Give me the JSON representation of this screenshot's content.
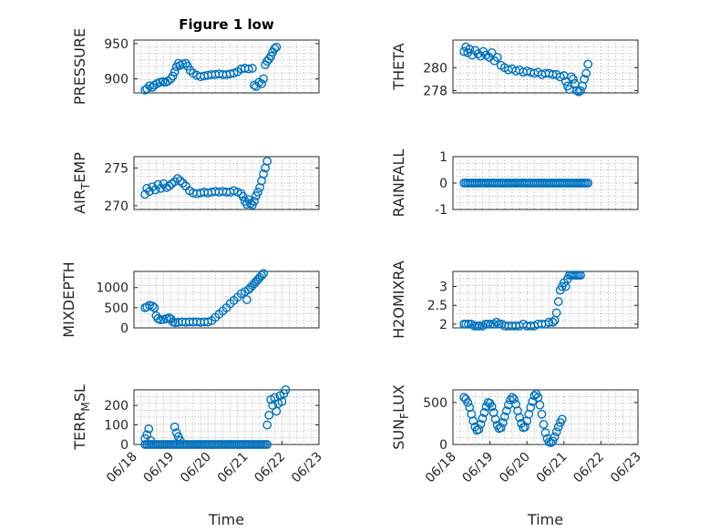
{
  "figure": {
    "title": "Figure 1 low"
  },
  "colors": {
    "marker": "#0072BD",
    "axis": "#262626",
    "grid": "#b0b0b0"
  },
  "chart_data": [
    {
      "id": "pressure",
      "type": "scatter",
      "title": "Figure 1 low",
      "ylabel": "PRESSURE",
      "xlabel": "",
      "xlim": [
        0,
        5
      ],
      "ylim": [
        880,
        955
      ],
      "yticks": [
        900,
        950
      ],
      "yticklabels": [
        "900",
        "950"
      ],
      "xticks": [],
      "xticklabels": [],
      "grid": true,
      "marker": "circle",
      "points": [
        [
          0.3,
          884
        ],
        [
          0.35,
          886
        ],
        [
          0.42,
          890
        ],
        [
          0.5,
          888
        ],
        [
          0.55,
          891
        ],
        [
          0.62,
          893
        ],
        [
          0.7,
          895
        ],
        [
          0.78,
          896
        ],
        [
          0.85,
          895
        ],
        [
          0.92,
          897
        ],
        [
          1.0,
          900
        ],
        [
          1.05,
          904
        ],
        [
          1.1,
          910
        ],
        [
          1.15,
          917
        ],
        [
          1.2,
          922
        ],
        [
          1.25,
          919
        ],
        [
          1.32,
          921
        ],
        [
          1.4,
          922
        ],
        [
          1.45,
          918
        ],
        [
          1.52,
          912
        ],
        [
          1.6,
          908
        ],
        [
          1.7,
          905
        ],
        [
          1.8,
          903
        ],
        [
          1.9,
          904
        ],
        [
          2.0,
          905
        ],
        [
          2.1,
          906
        ],
        [
          2.2,
          906
        ],
        [
          2.3,
          907
        ],
        [
          2.4,
          906
        ],
        [
          2.5,
          906
        ],
        [
          2.6,
          907
        ],
        [
          2.7,
          908
        ],
        [
          2.8,
          910
        ],
        [
          2.9,
          914
        ],
        [
          3.0,
          915
        ],
        [
          3.1,
          914
        ],
        [
          3.2,
          915
        ],
        [
          3.25,
          891
        ],
        [
          3.3,
          889
        ],
        [
          3.38,
          895
        ],
        [
          3.45,
          893
        ],
        [
          3.5,
          900
        ],
        [
          3.55,
          920
        ],
        [
          3.6,
          925
        ],
        [
          3.65,
          928
        ],
        [
          3.7,
          932
        ],
        [
          3.75,
          938
        ],
        [
          3.8,
          943
        ],
        [
          3.85,
          945
        ]
      ]
    },
    {
      "id": "theta",
      "type": "scatter",
      "ylabel": "THETA",
      "xlabel": "",
      "xlim": [
        0,
        5
      ],
      "ylim": [
        277.8,
        282.4
      ],
      "yticks": [
        278,
        280
      ],
      "yticklabels": [
        "278",
        "280"
      ],
      "xticks": [],
      "xticklabels": [],
      "grid": true,
      "marker": "circle",
      "points": [
        [
          0.3,
          281.4
        ],
        [
          0.35,
          281.8
        ],
        [
          0.4,
          281.3
        ],
        [
          0.45,
          281.6
        ],
        [
          0.52,
          281.1
        ],
        [
          0.6,
          281.5
        ],
        [
          0.68,
          281.2
        ],
        [
          0.75,
          281.0
        ],
        [
          0.82,
          281.4
        ],
        [
          0.9,
          281.1
        ],
        [
          0.98,
          280.9
        ],
        [
          1.05,
          281.3
        ],
        [
          1.12,
          280.6
        ],
        [
          1.2,
          280.9
        ],
        [
          1.3,
          280.2
        ],
        [
          1.4,
          280.0
        ],
        [
          1.5,
          279.8
        ],
        [
          1.6,
          279.9
        ],
        [
          1.7,
          279.7
        ],
        [
          1.8,
          279.8
        ],
        [
          1.9,
          279.6
        ],
        [
          2.0,
          279.7
        ],
        [
          2.1,
          279.6
        ],
        [
          2.2,
          279.5
        ],
        [
          2.3,
          279.6
        ],
        [
          2.4,
          279.4
        ],
        [
          2.5,
          279.5
        ],
        [
          2.6,
          279.5
        ],
        [
          2.7,
          279.4
        ],
        [
          2.8,
          279.4
        ],
        [
          2.9,
          279.2
        ],
        [
          3.0,
          279.3
        ],
        [
          3.05,
          278.8
        ],
        [
          3.1,
          278.4
        ],
        [
          3.15,
          278.1
        ],
        [
          3.2,
          279.2
        ],
        [
          3.25,
          279.0
        ],
        [
          3.3,
          278.6
        ],
        [
          3.35,
          278.0
        ],
        [
          3.4,
          277.9
        ],
        [
          3.45,
          278.0
        ],
        [
          3.5,
          278.4
        ],
        [
          3.55,
          279.0
        ],
        [
          3.6,
          279.5
        ],
        [
          3.65,
          280.3
        ]
      ]
    },
    {
      "id": "air_temp",
      "type": "scatter",
      "ylabel": "AIR",
      "ylabel_sub": "T",
      "ylabel_rest": "EMP",
      "xlabel": "",
      "xlim": [
        0,
        5
      ],
      "ylim": [
        269.5,
        276.5
      ],
      "yticks": [
        270,
        275
      ],
      "yticklabels": [
        "270",
        "275"
      ],
      "xticks": [],
      "xticklabels": [],
      "grid": true,
      "marker": "circle",
      "points": [
        [
          0.3,
          271.5
        ],
        [
          0.35,
          272.3
        ],
        [
          0.42,
          271.9
        ],
        [
          0.5,
          272.5
        ],
        [
          0.58,
          272.1
        ],
        [
          0.65,
          272.8
        ],
        [
          0.72,
          272.3
        ],
        [
          0.8,
          272.9
        ],
        [
          0.88,
          272.4
        ],
        [
          0.95,
          272.6
        ],
        [
          1.02,
          272.9
        ],
        [
          1.1,
          273.2
        ],
        [
          1.18,
          273.6
        ],
        [
          1.25,
          273.3
        ],
        [
          1.32,
          273.0
        ],
        [
          1.4,
          272.6
        ],
        [
          1.5,
          272.0
        ],
        [
          1.6,
          271.7
        ],
        [
          1.7,
          271.6
        ],
        [
          1.8,
          271.7
        ],
        [
          1.9,
          271.8
        ],
        [
          2.0,
          271.7
        ],
        [
          2.1,
          271.8
        ],
        [
          2.2,
          271.9
        ],
        [
          2.3,
          271.8
        ],
        [
          2.4,
          271.9
        ],
        [
          2.5,
          271.8
        ],
        [
          2.6,
          271.8
        ],
        [
          2.7,
          272.0
        ],
        [
          2.8,
          271.8
        ],
        [
          2.9,
          271.6
        ],
        [
          2.95,
          271.2
        ],
        [
          3.0,
          270.6
        ],
        [
          3.05,
          270.2
        ],
        [
          3.1,
          270.8
        ],
        [
          3.15,
          270.3
        ],
        [
          3.2,
          270.1
        ],
        [
          3.25,
          270.6
        ],
        [
          3.3,
          271.3
        ],
        [
          3.35,
          271.8
        ],
        [
          3.4,
          272.4
        ],
        [
          3.45,
          273.3
        ],
        [
          3.5,
          274.2
        ],
        [
          3.55,
          275.0
        ],
        [
          3.6,
          275.9
        ]
      ]
    },
    {
      "id": "rainfall",
      "type": "scatter",
      "ylabel": "RAINFALL",
      "xlabel": "",
      "xlim": [
        0,
        5
      ],
      "ylim": [
        -1,
        1
      ],
      "yticks": [
        -1,
        0,
        1
      ],
      "yticklabels": [
        "-1",
        "0",
        "1"
      ],
      "xticks": [],
      "xticklabels": [],
      "grid": true,
      "marker": "circle",
      "constant": {
        "from": 0.3,
        "to": 3.65,
        "step": 0.05,
        "value": 0
      }
    },
    {
      "id": "mixdepth",
      "type": "scatter",
      "ylabel": "MIXDEPTH",
      "xlabel": "",
      "xlim": [
        0,
        5
      ],
      "ylim": [
        0,
        1400
      ],
      "yticks": [
        0,
        500,
        1000
      ],
      "yticklabels": [
        "0",
        "500",
        "1000"
      ],
      "xticks": [],
      "xticklabels": [],
      "grid": true,
      "marker": "circle",
      "points": [
        [
          0.3,
          500
        ],
        [
          0.35,
          520
        ],
        [
          0.42,
          560
        ],
        [
          0.5,
          540
        ],
        [
          0.55,
          500
        ],
        [
          0.6,
          300
        ],
        [
          0.65,
          230
        ],
        [
          0.72,
          200
        ],
        [
          0.8,
          210
        ],
        [
          0.88,
          230
        ],
        [
          0.95,
          250
        ],
        [
          1.0,
          220
        ],
        [
          1.05,
          150
        ],
        [
          1.12,
          130
        ],
        [
          1.2,
          140
        ],
        [
          1.3,
          150
        ],
        [
          1.4,
          140
        ],
        [
          1.5,
          150
        ],
        [
          1.6,
          145
        ],
        [
          1.7,
          150
        ],
        [
          1.8,
          140
        ],
        [
          1.9,
          150
        ],
        [
          2.0,
          145
        ],
        [
          2.1,
          180
        ],
        [
          2.2,
          260
        ],
        [
          2.3,
          340
        ],
        [
          2.4,
          420
        ],
        [
          2.5,
          500
        ],
        [
          2.6,
          600
        ],
        [
          2.7,
          680
        ],
        [
          2.8,
          760
        ],
        [
          2.9,
          850
        ],
        [
          3.0,
          900
        ],
        [
          3.05,
          700
        ],
        [
          3.1,
          950
        ],
        [
          3.15,
          1000
        ],
        [
          3.2,
          1050
        ],
        [
          3.25,
          1100
        ],
        [
          3.3,
          1150
        ],
        [
          3.35,
          1200
        ],
        [
          3.4,
          1250
        ],
        [
          3.45,
          1300
        ],
        [
          3.5,
          1350
        ]
      ]
    },
    {
      "id": "h2omixra",
      "type": "scatter",
      "ylabel": "H2OMIXRA",
      "xlabel": "",
      "xlim": [
        0,
        5
      ],
      "ylim": [
        1.9,
        3.4
      ],
      "yticks": [
        2,
        2.5,
        3
      ],
      "yticklabels": [
        "2",
        "2.5",
        "3"
      ],
      "xticks": [],
      "xticklabels": [],
      "grid": true,
      "marker": "circle",
      "points": [
        [
          0.3,
          2.0
        ],
        [
          0.35,
          2.0
        ],
        [
          0.42,
          2.0
        ],
        [
          0.5,
          2.0
        ],
        [
          0.58,
          1.95
        ],
        [
          0.65,
          1.95
        ],
        [
          0.72,
          1.95
        ],
        [
          0.8,
          1.95
        ],
        [
          0.88,
          2.0
        ],
        [
          0.95,
          2.0
        ],
        [
          1.02,
          2.0
        ],
        [
          1.1,
          2.0
        ],
        [
          1.18,
          2.05
        ],
        [
          1.25,
          2.0
        ],
        [
          1.32,
          2.0
        ],
        [
          1.4,
          1.95
        ],
        [
          1.5,
          1.95
        ],
        [
          1.6,
          1.95
        ],
        [
          1.7,
          1.95
        ],
        [
          1.8,
          1.95
        ],
        [
          1.9,
          2.0
        ],
        [
          2.0,
          1.95
        ],
        [
          2.1,
          1.95
        ],
        [
          2.2,
          1.95
        ],
        [
          2.3,
          2.0
        ],
        [
          2.4,
          2.0
        ],
        [
          2.5,
          2.0
        ],
        [
          2.6,
          2.05
        ],
        [
          2.7,
          2.05
        ],
        [
          2.75,
          2.1
        ],
        [
          2.8,
          2.3
        ],
        [
          2.85,
          2.6
        ],
        [
          2.9,
          2.9
        ],
        [
          2.95,
          3.0
        ],
        [
          3.0,
          3.1
        ],
        [
          3.05,
          3.0
        ],
        [
          3.1,
          3.2
        ],
        [
          3.15,
          3.3
        ],
        [
          3.2,
          3.3
        ],
        [
          3.25,
          3.3
        ],
        [
          3.3,
          3.3
        ],
        [
          3.35,
          3.3
        ],
        [
          3.4,
          3.3
        ],
        [
          3.45,
          3.3
        ]
      ]
    },
    {
      "id": "terr_msl",
      "type": "scatter",
      "ylabel": "TERR",
      "ylabel_sub": "M",
      "ylabel_rest": "SL",
      "xlabel": "Time",
      "xlim": [
        0,
        5
      ],
      "ylim": [
        0,
        280
      ],
      "yticks": [
        0,
        100,
        200
      ],
      "yticklabels": [
        "0",
        "100",
        "200"
      ],
      "xticks": [
        0,
        1,
        2,
        3,
        4,
        5
      ],
      "xticklabels": [
        "06/18",
        "06/19",
        "06/20",
        "06/21",
        "06/22",
        "06/23"
      ],
      "grid": true,
      "marker": "circle",
      "constant": {
        "from": 0.3,
        "to": 3.6,
        "step": 0.05,
        "value": 0
      },
      "points": [
        [
          0.3,
          30
        ],
        [
          0.35,
          50
        ],
        [
          0.4,
          80
        ],
        [
          0.45,
          20
        ],
        [
          1.1,
          90
        ],
        [
          1.15,
          60
        ],
        [
          1.2,
          40
        ],
        [
          1.25,
          20
        ],
        [
          3.6,
          100
        ],
        [
          3.65,
          150
        ],
        [
          3.7,
          230
        ],
        [
          3.75,
          200
        ],
        [
          3.8,
          240
        ],
        [
          3.85,
          170
        ],
        [
          3.9,
          210
        ],
        [
          3.95,
          250
        ],
        [
          4.0,
          220
        ],
        [
          4.05,
          260
        ],
        [
          4.1,
          280
        ]
      ]
    },
    {
      "id": "sun_flux",
      "type": "scatter",
      "ylabel": "SUN",
      "ylabel_sub": "F",
      "ylabel_rest": "LUX",
      "xlabel": "Time",
      "xlim": [
        0,
        5
      ],
      "ylim": [
        0,
        650
      ],
      "yticks": [
        0,
        500
      ],
      "yticklabels": [
        "0",
        "500"
      ],
      "xticks": [
        0,
        1,
        2,
        3,
        4,
        5
      ],
      "xticklabels": [
        "06/18",
        "06/19",
        "06/20",
        "06/21",
        "06/22",
        "06/23"
      ],
      "grid": true,
      "marker": "circle",
      "points": [
        [
          0.3,
          560
        ],
        [
          0.35,
          540
        ],
        [
          0.4,
          500
        ],
        [
          0.45,
          440
        ],
        [
          0.5,
          360
        ],
        [
          0.55,
          280
        ],
        [
          0.6,
          210
        ],
        [
          0.65,
          170
        ],
        [
          0.7,
          180
        ],
        [
          0.75,
          240
        ],
        [
          0.8,
          310
        ],
        [
          0.85,
          380
        ],
        [
          0.9,
          450
        ],
        [
          0.95,
          500
        ],
        [
          1.0,
          490
        ],
        [
          1.05,
          450
        ],
        [
          1.1,
          380
        ],
        [
          1.15,
          300
        ],
        [
          1.2,
          230
        ],
        [
          1.25,
          190
        ],
        [
          1.3,
          200
        ],
        [
          1.35,
          260
        ],
        [
          1.4,
          330
        ],
        [
          1.45,
          400
        ],
        [
          1.5,
          470
        ],
        [
          1.55,
          530
        ],
        [
          1.6,
          560
        ],
        [
          1.65,
          540
        ],
        [
          1.7,
          480
        ],
        [
          1.75,
          400
        ],
        [
          1.8,
          320
        ],
        [
          1.85,
          250
        ],
        [
          1.9,
          200
        ],
        [
          1.95,
          210
        ],
        [
          2.0,
          280
        ],
        [
          2.05,
          360
        ],
        [
          2.1,
          440
        ],
        [
          2.15,
          510
        ],
        [
          2.2,
          580
        ],
        [
          2.25,
          600
        ],
        [
          2.3,
          560
        ],
        [
          2.35,
          470
        ],
        [
          2.4,
          360
        ],
        [
          2.45,
          240
        ],
        [
          2.5,
          140
        ],
        [
          2.55,
          70
        ],
        [
          2.6,
          30
        ],
        [
          2.65,
          20
        ],
        [
          2.7,
          40
        ],
        [
          2.75,
          90
        ],
        [
          2.8,
          150
        ],
        [
          2.85,
          210
        ],
        [
          2.9,
          260
        ],
        [
          2.95,
          300
        ]
      ]
    }
  ]
}
